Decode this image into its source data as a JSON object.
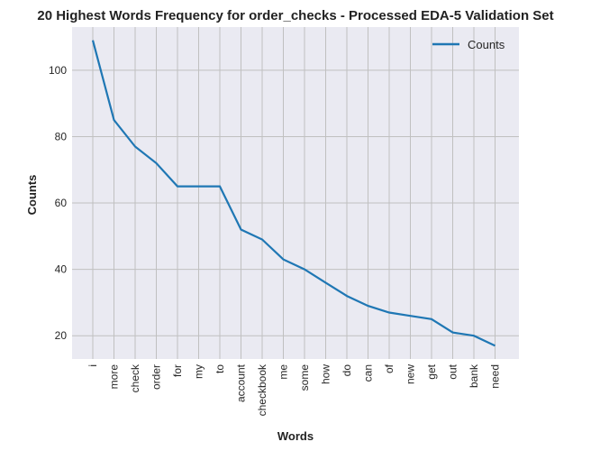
{
  "chart_data": {
    "type": "line",
    "title": "20 Highest Words Frequency for order_checks - Processed EDA-5 Validation Set",
    "xlabel": "Words",
    "ylabel": "Counts",
    "categories": [
      "i",
      "more",
      "check",
      "order",
      "for",
      "my",
      "to",
      "account",
      "checkbook",
      "me",
      "some",
      "how",
      "do",
      "can",
      "of",
      "new",
      "get",
      "out",
      "bank",
      "need"
    ],
    "series": [
      {
        "name": "Counts",
        "values": [
          109,
          85,
          77,
          72,
          65,
          65,
          65,
          52,
          49,
          43,
          40,
          36,
          32,
          29,
          27,
          26,
          25,
          21,
          20,
          17
        ]
      }
    ],
    "ylim": [
      13,
      113
    ],
    "yticks": [
      20,
      40,
      60,
      80,
      100
    ],
    "grid": true,
    "legend": "top-right",
    "colors": {
      "line": "#1f77b4",
      "background": "#eaeaf2",
      "grid": "#c0c0c0"
    }
  }
}
